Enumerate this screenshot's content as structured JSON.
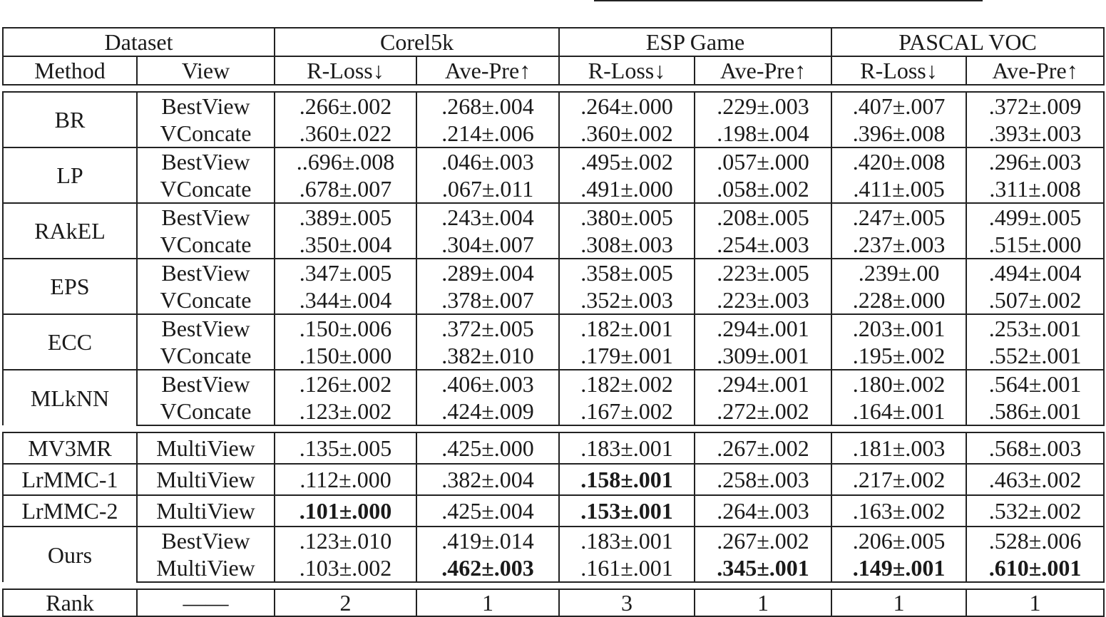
{
  "header": {
    "dataset_label": "Dataset",
    "datasets": [
      "Corel5k",
      "ESP Game",
      "PASCAL VOC"
    ],
    "method_label": "Method",
    "view_label": "View",
    "metrics": [
      "R-Loss↓",
      "Ave-Pre↑",
      "R-Loss↓",
      "Ave-Pre↑",
      "R-Loss↓",
      "Ave-Pre↑"
    ]
  },
  "groups": [
    {
      "method": "BR",
      "rows": [
        {
          "view": "BestView",
          "cells": [
            ".266±.002",
            ".268±.004",
            ".264±.000",
            ".229±.003",
            ".407±.007",
            ".372±.009"
          ]
        },
        {
          "view": "VConcate",
          "cells": [
            ".360±.022",
            ".214±.006",
            ".360±.002",
            ".198±.004",
            ".396±.008",
            ".393±.003"
          ]
        }
      ]
    },
    {
      "method": "LP",
      "rows": [
        {
          "view": "BestView",
          "cells": [
            "..696±.008",
            ".046±.003",
            ".495±.002",
            ".057±.000",
            ".420±.008",
            ".296±.003"
          ]
        },
        {
          "view": "VConcate",
          "cells": [
            ".678±.007",
            ".067±.011",
            ".491±.000",
            ".058±.002",
            ".411±.005",
            ".311±.008"
          ]
        }
      ]
    },
    {
      "method": "RAkEL",
      "rows": [
        {
          "view": "BestView",
          "cells": [
            ".389±.005",
            ".243±.004",
            ".380±.005",
            ".208±.005",
            ".247±.005",
            ".499±.005"
          ]
        },
        {
          "view": "VConcate",
          "cells": [
            ".350±.004",
            ".304±.007",
            ".308±.003",
            ".254±.003",
            ".237±.003",
            ".515±.000"
          ]
        }
      ]
    },
    {
      "method": "EPS",
      "rows": [
        {
          "view": "BestView",
          "cells": [
            ".347±.005",
            ".289±.004",
            ".358±.005",
            ".223±.005",
            ".239±.00",
            ".494±.004"
          ]
        },
        {
          "view": "VConcate",
          "cells": [
            ".344±.004",
            ".378±.007",
            ".352±.003",
            ".223±.003",
            ".228±.000",
            ".507±.002"
          ]
        }
      ]
    },
    {
      "method": "ECC",
      "rows": [
        {
          "view": "BestView",
          "cells": [
            ".150±.006",
            ".372±.005",
            ".182±.001",
            ".294±.001",
            ".203±.001",
            ".253±.001"
          ]
        },
        {
          "view": "VConcate",
          "cells": [
            ".150±.000",
            ".382±.010",
            ".179±.001",
            ".309±.001",
            ".195±.002",
            ".552±.001"
          ]
        }
      ]
    },
    {
      "method": "MLkNN",
      "rows": [
        {
          "view": "BestView",
          "cells": [
            ".126±.002",
            ".406±.003",
            ".182±.002",
            ".294±.001",
            ".180±.002",
            ".564±.001"
          ]
        },
        {
          "view": "VConcate",
          "cells": [
            ".123±.002",
            ".424±.009",
            ".167±.002",
            ".272±.002",
            ".164±.001",
            ".586±.001"
          ]
        }
      ]
    }
  ],
  "multiview": [
    {
      "method": "MV3MR",
      "view": "MultiView",
      "cells": [
        ".135±.005",
        ".425±.000",
        ".183±.001",
        ".267±.002",
        ".181±.003",
        ".568±.003"
      ]
    },
    {
      "method": "LrMMC-1",
      "view": "MultiView",
      "cells": [
        ".112±.000",
        ".382±.004",
        ".158±.001",
        ".258±.003",
        ".217±.002",
        ".463±.002"
      ]
    },
    {
      "method": "LrMMC-2",
      "view": "MultiView",
      "cells": [
        ".101±.000",
        ".425±.004",
        ".153±.001",
        ".264±.003",
        ".163±.002",
        ".532±.002"
      ]
    }
  ],
  "ours": {
    "method": "Ours",
    "rows": [
      {
        "view": "BestView",
        "cells": [
          ".123±.010",
          ".419±.014",
          ".183±.001",
          ".267±.002",
          ".206±.005",
          ".528±.006"
        ]
      },
      {
        "view": "MultiView",
        "cells": [
          ".103±.002",
          ".462±.003",
          ".161±.001",
          ".345±.001",
          ".149±.001",
          ".610±.001"
        ]
      }
    ]
  },
  "rank": {
    "label": "Rank",
    "view": "——",
    "cells": [
      "2",
      "1",
      "3",
      "1",
      "1",
      "1"
    ]
  }
}
